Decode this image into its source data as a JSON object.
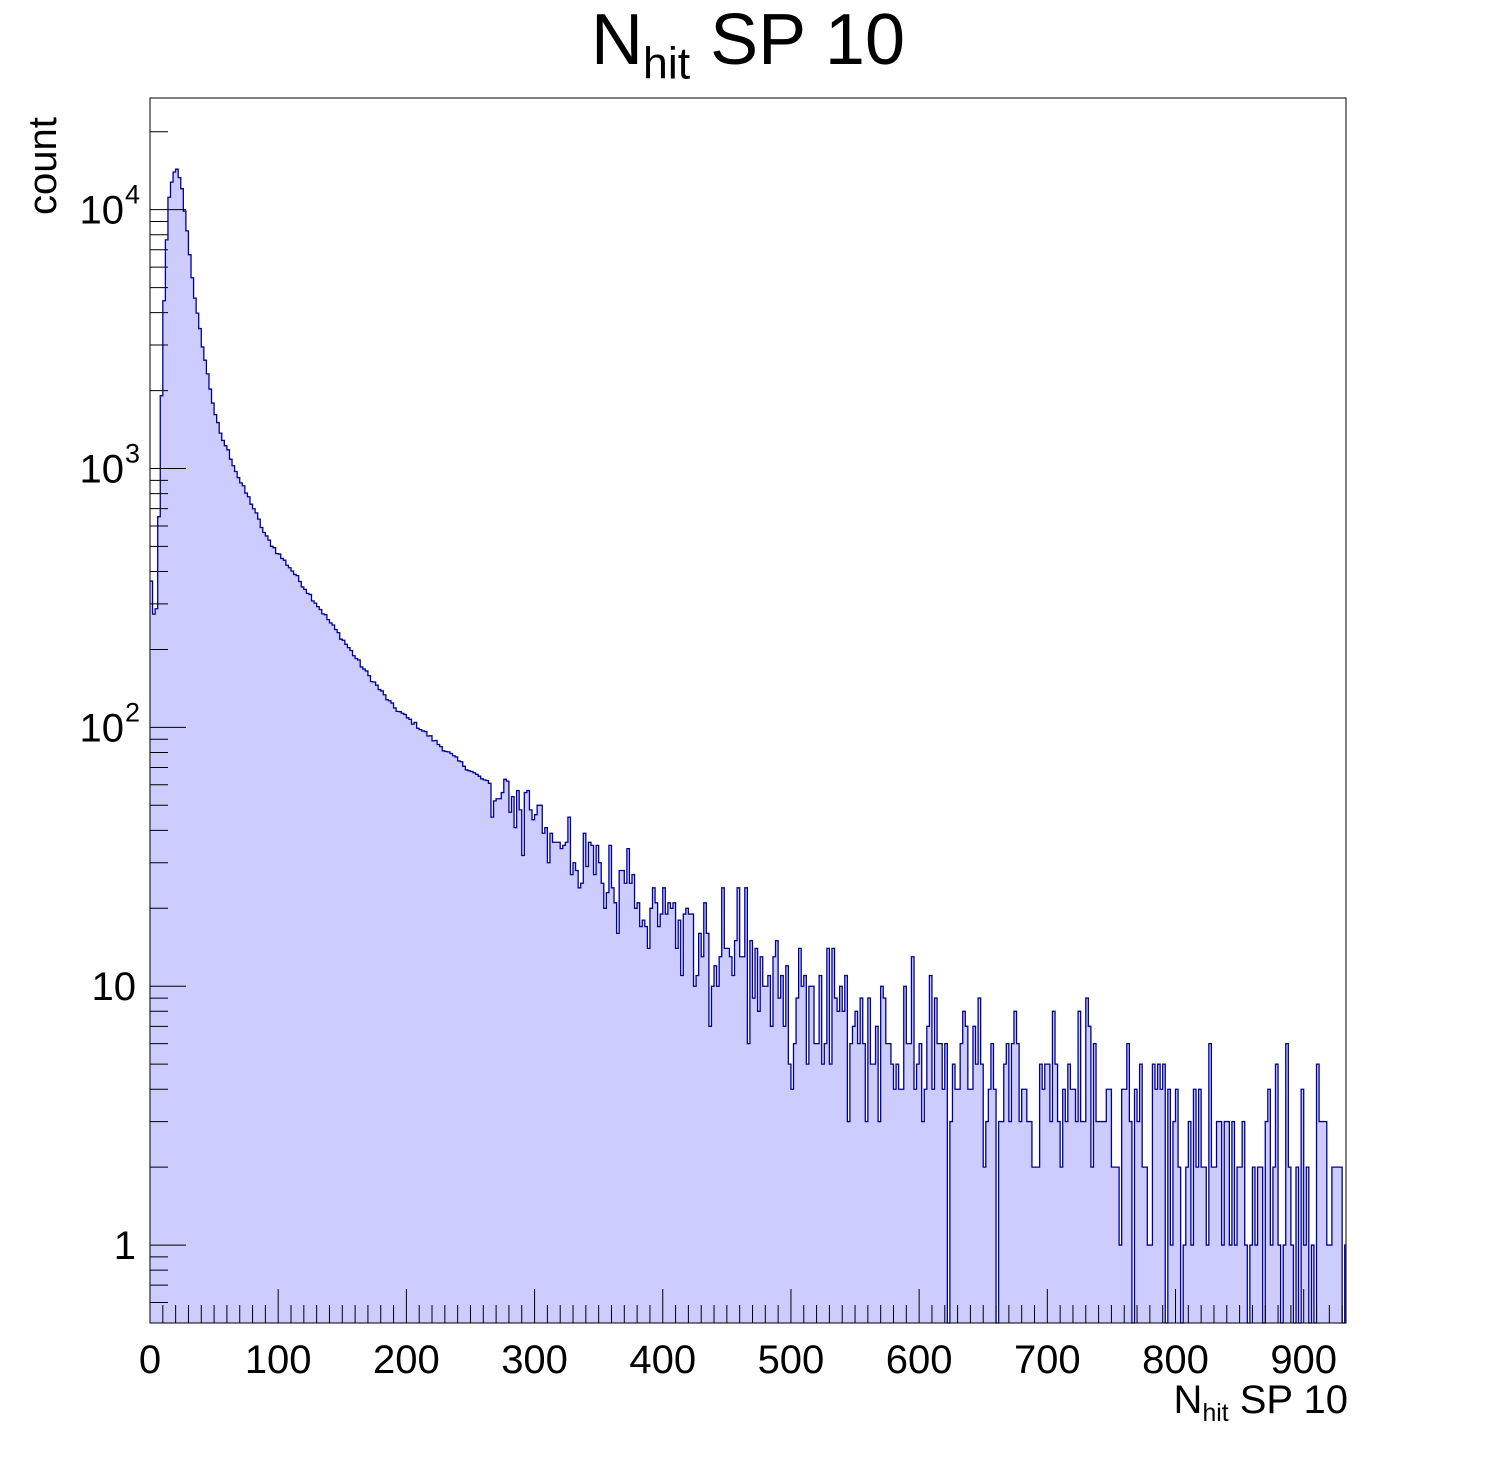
{
  "chart_data": {
    "type": "histogram",
    "title": {
      "main": "N",
      "sub": "hit",
      "rest": " SP 10"
    },
    "xlabel": {
      "main": "N",
      "sub": "hit",
      "rest": " SP 10"
    },
    "ylabel": "count",
    "x_range": [
      0,
      933
    ],
    "y_range": [
      0.5,
      27000
    ],
    "y_scale": "log",
    "bin_width": 2,
    "x_ticks": [
      0,
      100,
      200,
      300,
      400,
      500,
      600,
      700,
      800,
      900
    ],
    "x_tick_labels": [
      "0",
      "100",
      "200",
      "300",
      "400",
      "500",
      "600",
      "700",
      "800",
      "900"
    ],
    "y_ticks": [
      1,
      10,
      100,
      1000,
      10000
    ],
    "y_tick_labels": [
      {
        "base": "1",
        "exp": ""
      },
      {
        "base": "10",
        "exp": ""
      },
      {
        "base": "10",
        "exp": "2"
      },
      {
        "base": "10",
        "exp": "3"
      },
      {
        "base": "10",
        "exp": "4"
      }
    ],
    "profile_points": [
      [
        0,
        420
      ],
      [
        4,
        240
      ],
      [
        6,
        340
      ],
      [
        8,
        1200
      ],
      [
        10,
        3000
      ],
      [
        12,
        6500
      ],
      [
        15,
        11000
      ],
      [
        18,
        13600
      ],
      [
        21,
        14200
      ],
      [
        24,
        13000
      ],
      [
        27,
        10000
      ],
      [
        30,
        7500
      ],
      [
        35,
        4500
      ],
      [
        40,
        3200
      ],
      [
        45,
        2300
      ],
      [
        50,
        1700
      ],
      [
        55,
        1350
      ],
      [
        60,
        1200
      ],
      [
        70,
        900
      ],
      [
        80,
        720
      ],
      [
        90,
        550
      ],
      [
        100,
        470
      ],
      [
        110,
        410
      ],
      [
        120,
        350
      ],
      [
        130,
        300
      ],
      [
        150,
        220
      ],
      [
        170,
        160
      ],
      [
        190,
        120
      ],
      [
        210,
        100
      ],
      [
        230,
        82
      ],
      [
        250,
        68
      ],
      [
        270,
        58
      ],
      [
        290,
        50
      ],
      [
        310,
        40
      ],
      [
        330,
        33
      ],
      [
        350,
        29
      ],
      [
        370,
        24
      ],
      [
        400,
        20
      ],
      [
        430,
        16
      ],
      [
        460,
        14
      ],
      [
        500,
        10
      ],
      [
        540,
        8
      ],
      [
        580,
        6.3
      ],
      [
        620,
        5.2
      ],
      [
        660,
        4.5
      ],
      [
        700,
        3.8
      ],
      [
        740,
        3.2
      ],
      [
        780,
        2.6
      ],
      [
        820,
        2.2
      ],
      [
        860,
        1.9
      ],
      [
        900,
        1.5
      ],
      [
        933,
        1.3
      ]
    ],
    "noise_seed": 12345,
    "colors": {
      "fill": "#ccccff",
      "line": "#000099",
      "axis": "#000000",
      "background": "#ffffff"
    }
  }
}
